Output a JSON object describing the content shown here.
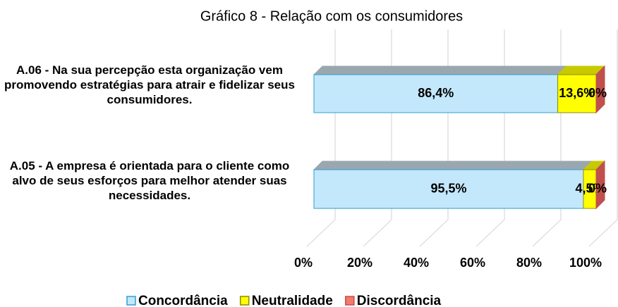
{
  "chart_data": {
    "type": "stacked-bar-3d-horizontal",
    "title": "Gráfico 8 - Relação com os consumidores",
    "categories": [
      "A.06 - Na sua percepção esta organização vem promovendo estratégias para atrair e fidelizar seus consumidores.",
      "A.05 - A empresa é orientada para o cliente como alvo de seus esforços para melhor atender suas necessidades."
    ],
    "series": [
      {
        "name": "Concordância",
        "color": "#c3e7fb",
        "values": [
          86.4,
          95.5
        ],
        "value_labels": [
          "86,4%",
          "95,5%"
        ]
      },
      {
        "name": "Neutralidade",
        "color": "#ffff00",
        "values": [
          13.6,
          4.5
        ],
        "value_labels": [
          "13,6%",
          "4,5%"
        ]
      },
      {
        "name": "Discordância",
        "color": "#f47a6a",
        "values": [
          0,
          0
        ],
        "value_labels": [
          "0%",
          "0%"
        ]
      }
    ],
    "xlim": [
      0,
      100
    ],
    "xticks": [
      {
        "value": 0,
        "label": "0%"
      },
      {
        "value": 20,
        "label": "20%"
      },
      {
        "value": 40,
        "label": "40%"
      },
      {
        "value": 60,
        "label": "60%"
      },
      {
        "value": 80,
        "label": "80%"
      },
      {
        "value": 100,
        "label": "100%"
      }
    ],
    "grid": true,
    "legend": "bottom"
  }
}
